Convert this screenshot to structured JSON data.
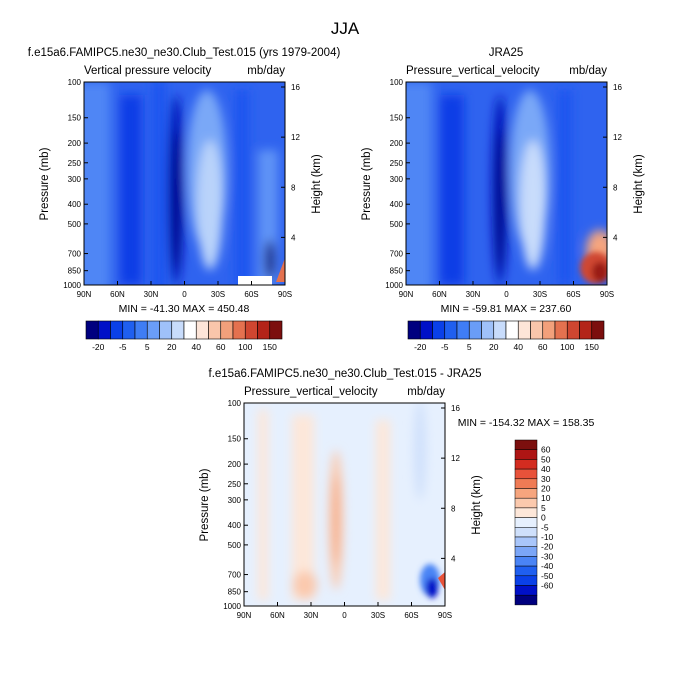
{
  "figure_title": "JJA",
  "colors": {
    "full_scale": [
      "#00007f",
      "#0010c8",
      "#0a40e8",
      "#1f5ff0",
      "#3f7df5",
      "#6a9df7",
      "#9fc1f9",
      "#c8dcfb",
      "#ffffff",
      "#fde5d8",
      "#f9c6ab",
      "#f2a07b",
      "#e4714f",
      "#cf4630",
      "#b32418",
      "#7c0f0e"
    ],
    "diff_scale": [
      "#00007f",
      "#0010c8",
      "#0a40e8",
      "#1f5ff0",
      "#4a84f5",
      "#7ba6f7",
      "#a9c6fa",
      "#cfe0fb",
      "#e6f0fe",
      "#fde7d9",
      "#fbc9ad",
      "#f6a57e",
      "#ef7b55",
      "#e8523a",
      "#d32c20",
      "#ae1514",
      "#7c0f0e"
    ]
  },
  "chart_data": [
    {
      "type": "heatmap",
      "suptitle": "f.e15a6.FAMIPC5.ne30_ne30.Club_Test.015 (yrs 1979-2004)",
      "title_left": "Vertical pressure velocity",
      "title_right": "mb/day",
      "xlabel": "",
      "ylabel": "Pressure (mb)",
      "y2label": "Height (km)",
      "x_ticks": [
        "90N",
        "60N",
        "30N",
        "0",
        "30S",
        "60S",
        "90S"
      ],
      "y_ticks": [
        "100",
        "150",
        "200",
        "250",
        "300",
        "400",
        "500",
        "700",
        "850",
        "1000"
      ],
      "y_tick_values": [
        100,
        150,
        200,
        250,
        300,
        400,
        500,
        700,
        850,
        1000
      ],
      "y2_ticks": [
        "16",
        "12",
        "8",
        "4"
      ],
      "y2_tick_values": [
        16,
        12,
        8,
        4
      ],
      "stats": "MIN = -41.30  MAX = 450.48",
      "min": -41.3,
      "max": 450.48,
      "colorbar_labels": [
        "-20",
        "-5",
        "5",
        "20",
        "40",
        "60",
        "100",
        "150"
      ]
    },
    {
      "type": "heatmap",
      "suptitle": "JRA25",
      "title_left": "Pressure_vertical_velocity",
      "title_right": "mb/day",
      "xlabel": "",
      "ylabel": "Pressure (mb)",
      "y2label": "Height (km)",
      "x_ticks": [
        "90N",
        "60N",
        "30N",
        "0",
        "30S",
        "60S",
        "90S"
      ],
      "y_ticks": [
        "100",
        "150",
        "200",
        "250",
        "300",
        "400",
        "500",
        "700",
        "850",
        "1000"
      ],
      "y_tick_values": [
        100,
        150,
        200,
        250,
        300,
        400,
        500,
        700,
        850,
        1000
      ],
      "y2_ticks": [
        "16",
        "12",
        "8",
        "4"
      ],
      "y2_tick_values": [
        16,
        12,
        8,
        4
      ],
      "stats": "MIN = -59.81  MAX = 237.60",
      "min": -59.81,
      "max": 237.6,
      "colorbar_labels": [
        "-20",
        "-5",
        "5",
        "20",
        "40",
        "60",
        "100",
        "150"
      ]
    },
    {
      "type": "heatmap",
      "suptitle": "f.e15a6.FAMIPC5.ne30_ne30.Club_Test.015 - JRA25",
      "title_left": "Pressure_vertical_velocity",
      "title_right": "mb/day",
      "xlabel": "",
      "ylabel": "Pressure (mb)",
      "y2label": "Height (km)",
      "x_ticks": [
        "90N",
        "60N",
        "30N",
        "0",
        "30S",
        "60S",
        "90S"
      ],
      "y_ticks": [
        "100",
        "150",
        "200",
        "250",
        "300",
        "400",
        "500",
        "700",
        "850",
        "1000"
      ],
      "y_tick_values": [
        100,
        150,
        200,
        250,
        300,
        400,
        500,
        700,
        850,
        1000
      ],
      "y2_ticks": [
        "16",
        "12",
        "8",
        "4"
      ],
      "y2_tick_values": [
        16,
        12,
        8,
        4
      ],
      "stats": "MIN = -154.32  MAX = 158.35",
      "min": -154.32,
      "max": 158.35,
      "colorbar_labels": [
        "60",
        "50",
        "40",
        "30",
        "20",
        "10",
        "5",
        "0",
        "-5",
        "-10",
        "-20",
        "-30",
        "-40",
        "-50",
        "-60"
      ]
    }
  ]
}
